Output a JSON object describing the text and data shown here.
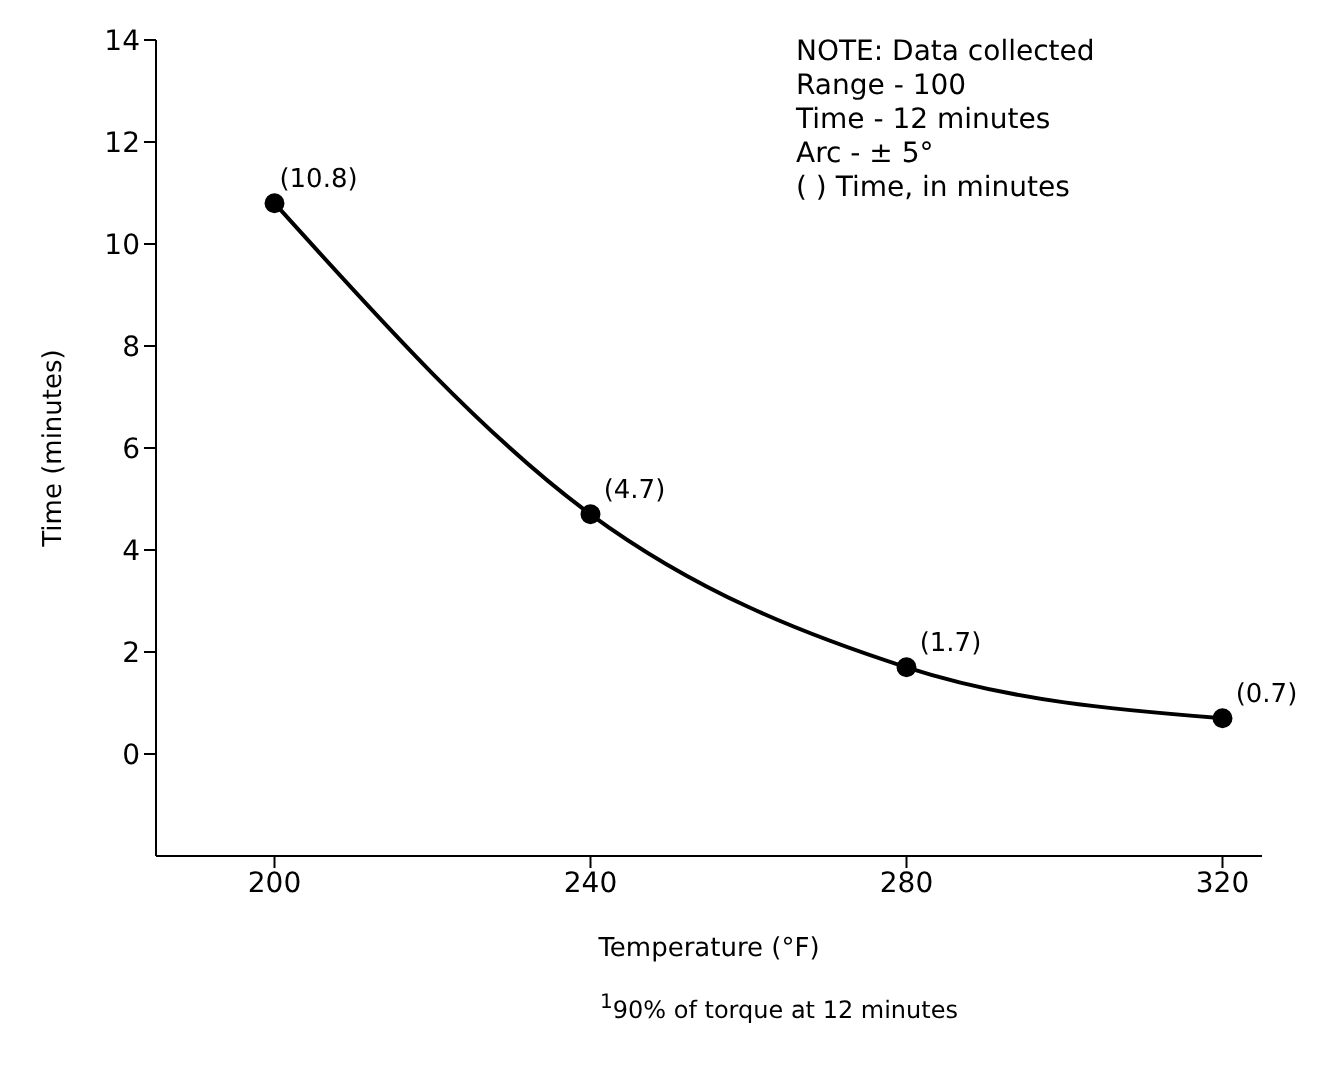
{
  "chart_data": {
    "type": "line",
    "xlabel": "Temperature (°F)",
    "ylabel": "Time (minutes)",
    "x": [
      200,
      240,
      280,
      320
    ],
    "series": [
      {
        "color": "#000000",
        "values": [
          10.8,
          4.7,
          1.7,
          0.7
        ],
        "value_labels": [
          "(10.8)",
          "(4.7)",
          "(1.7)",
          "(0.7)"
        ]
      }
    ],
    "xlim": [
      185,
      325
    ],
    "xticks": [
      200,
      240,
      280,
      320
    ],
    "ylim": [
      -2,
      14
    ],
    "yticks": [
      0,
      2,
      4,
      6,
      8,
      10,
      12,
      14
    ],
    "grid": false,
    "legend": false,
    "marker": "circle",
    "line_style": "solid",
    "annotations": [
      "NOTE: Data collected",
      "Range - 100",
      "Time - 12 minutes",
      "Arc - ± 5°",
      "(   ) Time, in minutes",
      "$^{1}$90% of torque at 12 minutes"
    ]
  }
}
